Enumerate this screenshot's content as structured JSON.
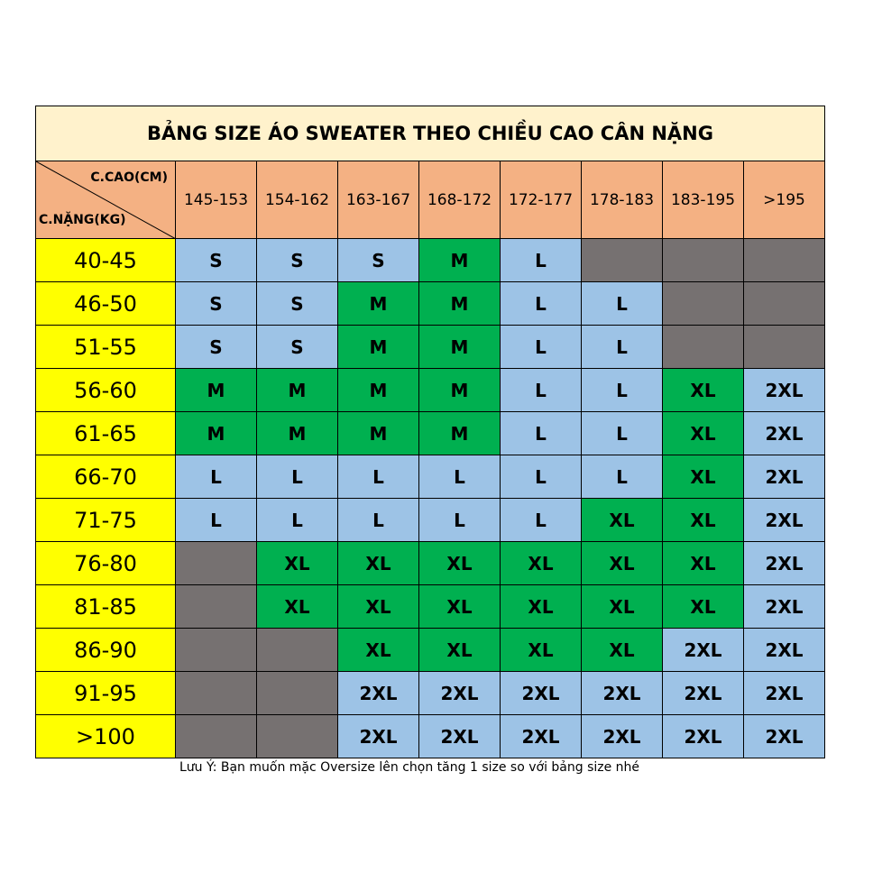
{
  "title": "BẢNG SIZE ÁO SWEATER THEO CHIỀU CAO CÂN NẶNG",
  "corner": {
    "height_label": "C.CAO(CM)",
    "weight_label": "C.NẶNG(KG)"
  },
  "heights": [
    "145-153",
    "154-162",
    "163-167",
    "168-172",
    "172-177",
    "178-183",
    "183-195",
    ">195"
  ],
  "rows": [
    {
      "weight": "40-45",
      "sizes": [
        "S",
        "S",
        "S",
        "M",
        "L",
        "",
        "",
        ""
      ]
    },
    {
      "weight": "46-50",
      "sizes": [
        "S",
        "S",
        "M",
        "M",
        "L",
        "L",
        "",
        ""
      ]
    },
    {
      "weight": "51-55",
      "sizes": [
        "S",
        "S",
        "M",
        "M",
        "L",
        "L",
        "",
        ""
      ]
    },
    {
      "weight": "56-60",
      "sizes": [
        "M",
        "M",
        "M",
        "M",
        "L",
        "L",
        "XL",
        "2XL"
      ]
    },
    {
      "weight": "61-65",
      "sizes": [
        "M",
        "M",
        "M",
        "M",
        "L",
        "L",
        "XL",
        "2XL"
      ]
    },
    {
      "weight": "66-70",
      "sizes": [
        "L",
        "L",
        "L",
        "L",
        "L",
        "L",
        "XL",
        "2XL"
      ]
    },
    {
      "weight": "71-75",
      "sizes": [
        "L",
        "L",
        "L",
        "L",
        "L",
        "XL",
        "XL",
        "2XL"
      ]
    },
    {
      "weight": "76-80",
      "sizes": [
        "",
        "XL",
        "XL",
        "XL",
        "XL",
        "XL",
        "XL",
        "2XL"
      ]
    },
    {
      "weight": "81-85",
      "sizes": [
        "",
        "XL",
        "XL",
        "XL",
        "XL",
        "XL",
        "XL",
        "2XL"
      ]
    },
    {
      "weight": "86-90",
      "sizes": [
        "",
        "",
        "XL",
        "XL",
        "XL",
        "XL",
        "2XL",
        "2XL"
      ]
    },
    {
      "weight": "91-95",
      "sizes": [
        "",
        "",
        "2XL",
        "2XL",
        "2XL",
        "2XL",
        "2XL",
        "2XL"
      ]
    },
    {
      "weight": ">100",
      "sizes": [
        "",
        "",
        "2XL",
        "2XL",
        "2XL",
        "2XL",
        "2XL",
        "2XL"
      ]
    }
  ],
  "colors": {
    "S": "#9DC3E6",
    "L": "#9DC3E6",
    "2XL": "#9DC3E6",
    "M": "#00B050",
    "XL": "#00B050",
    "empty": "#767171"
  },
  "note": "Lưu Ý: Bạn muốn mặc Oversize lên chọn tăng 1 size so với bảng size nhé"
}
